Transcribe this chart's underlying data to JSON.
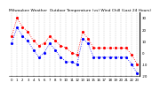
{
  "title": "Milwaukee Weather  Outdoor Temperature (vs) Wind Chill (Last 24 Hours)",
  "temp_x": [
    0,
    1,
    2,
    3,
    4,
    5,
    6,
    7,
    8,
    9,
    10,
    11,
    12,
    13,
    14,
    15,
    16,
    17,
    18,
    19,
    20,
    21,
    22,
    23
  ],
  "temp_y": [
    14,
    30,
    22,
    18,
    10,
    6,
    8,
    14,
    10,
    6,
    4,
    0,
    -2,
    18,
    12,
    4,
    4,
    4,
    4,
    4,
    4,
    4,
    -2,
    -10
  ],
  "chill_x": [
    0,
    1,
    2,
    3,
    4,
    5,
    6,
    7,
    8,
    9,
    10,
    11,
    12,
    13,
    14,
    15,
    16,
    17,
    18,
    19,
    20,
    21,
    22,
    23
  ],
  "chill_y": [
    8,
    22,
    14,
    10,
    2,
    -4,
    0,
    8,
    2,
    -4,
    -8,
    -8,
    -10,
    12,
    8,
    -4,
    -4,
    -4,
    -4,
    -4,
    -4,
    -4,
    -10,
    -18
  ],
  "temp_color": "#ff0000",
  "chill_color": "#0000ff",
  "grid_color": "#aaaaaa",
  "bg_color": "#ffffff",
  "ylim": [
    -20,
    35
  ],
  "ytick_vals": [
    30,
    20,
    10,
    0,
    -10,
    -20
  ],
  "ytick_labels": [
    "30",
    "20",
    "10",
    "0",
    "-10",
    "-20"
  ],
  "title_fontsize": 3.2,
  "tick_fontsize": 2.8,
  "dot_size": 2.5,
  "linewidth": 0.6
}
